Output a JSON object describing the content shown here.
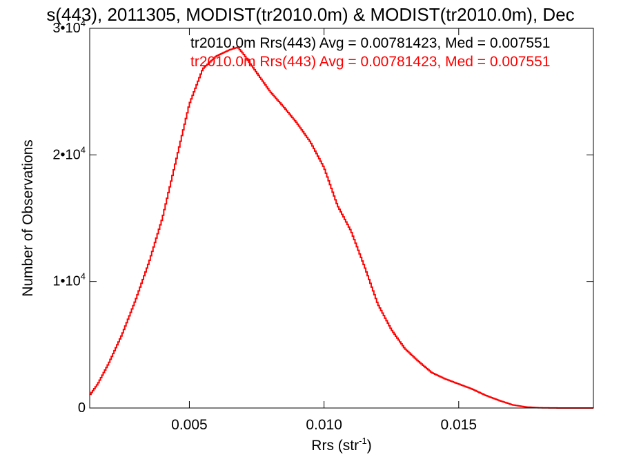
{
  "chart_data": {
    "type": "line",
    "title": "s(443), 2011305, MODIST(tr2010.0m) & MODIST(tr2010.0m), Dec",
    "xlabel": "Rrs (str",
    "xlabel_sup": "-1",
    "xlabel_close": ")",
    "ylabel": "Number of Observations",
    "xlim": [
      0.0013,
      0.02
    ],
    "ylim": [
      0,
      30000
    ],
    "x_ticks": [
      {
        "value": 0.005,
        "label": "0.005"
      },
      {
        "value": 0.01,
        "label": "0.010"
      },
      {
        "value": 0.015,
        "label": "0.015"
      }
    ],
    "y_ticks": [
      {
        "value": 0,
        "base": "0",
        "exp": ""
      },
      {
        "value": 10000,
        "base": "1•10",
        "exp": "4"
      },
      {
        "value": 20000,
        "base": "2•10",
        "exp": "4"
      },
      {
        "value": 30000,
        "base": "3•10",
        "exp": "4"
      }
    ],
    "legend": [
      {
        "text": "tr2010.0m Rrs(443) Avg = 0.00781423, Med = 0.007551",
        "color": "#000000"
      },
      {
        "text": "tr2010.0m Rrs(443) Avg = 0.00781423, Med = 0.007551",
        "color": "#ff0000"
      }
    ],
    "legend_placement": "top-right",
    "grid": false,
    "series": [
      {
        "color": "#ff0000",
        "x": [
          0.0013,
          0.0016,
          0.002,
          0.0025,
          0.003,
          0.0035,
          0.004,
          0.0045,
          0.005,
          0.0055,
          0.006,
          0.0065,
          0.0068,
          0.007,
          0.0075,
          0.008,
          0.0085,
          0.009,
          0.0095,
          0.01,
          0.0105,
          0.011,
          0.0115,
          0.012,
          0.0125,
          0.013,
          0.0135,
          0.014,
          0.0145,
          0.015,
          0.0155,
          0.016,
          0.0165,
          0.017,
          0.0175,
          0.018,
          0.0185,
          0.019,
          0.0195,
          0.02
        ],
        "y": [
          1000,
          1900,
          3500,
          5800,
          8500,
          11500,
          15000,
          19500,
          24000,
          26800,
          27800,
          28300,
          28500,
          28000,
          26500,
          25000,
          23800,
          22500,
          21000,
          19000,
          16000,
          14000,
          11200,
          8200,
          6200,
          4700,
          3700,
          2800,
          2300,
          1900,
          1500,
          1000,
          600,
          250,
          80,
          20,
          5,
          0,
          0,
          0
        ]
      }
    ]
  }
}
